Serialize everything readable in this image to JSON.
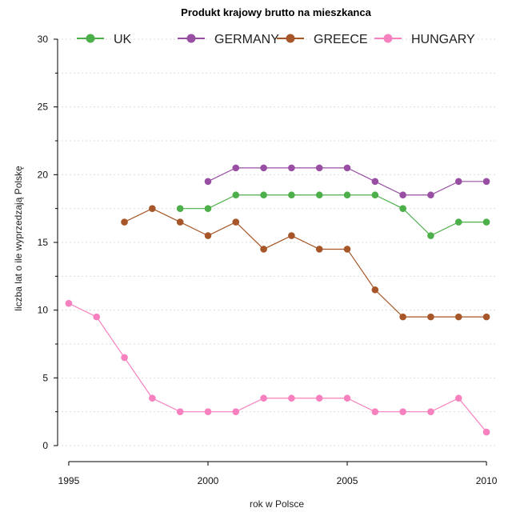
{
  "chart_data": {
    "type": "line",
    "title": "Produkt krajowy brutto na mieszkanca",
    "xlabel": "rok w Polsce",
    "ylabel": "liczba lat o ile wyprzedzają Polskę",
    "xlim": [
      1994.6,
      2010.4
    ],
    "ylim": [
      0,
      30
    ],
    "xticks": [
      1995,
      2000,
      2005,
      2010
    ],
    "yticks": [
      0,
      5,
      10,
      15,
      20,
      25,
      30
    ],
    "grid": true,
    "legend_position": "top",
    "series": [
      {
        "name": "UK",
        "color": "#4daf4a",
        "x": [
          1999,
          2000,
          2001,
          2002,
          2003,
          2004,
          2005,
          2006,
          2007,
          2008,
          2009,
          2010
        ],
        "y": [
          17.5,
          17.5,
          18.5,
          18.5,
          18.5,
          18.5,
          18.5,
          18.5,
          17.5,
          15.5,
          16.5,
          16.5
        ]
      },
      {
        "name": "GERMANY",
        "color": "#984ea3",
        "x": [
          2000,
          2001,
          2002,
          2003,
          2004,
          2005,
          2006,
          2007,
          2008,
          2009,
          2010
        ],
        "y": [
          19.5,
          20.5,
          20.5,
          20.5,
          20.5,
          20.5,
          19.5,
          18.5,
          18.5,
          19.5,
          19.5
        ]
      },
      {
        "name": "GREECE",
        "color": "#a65628",
        "x": [
          1997,
          1998,
          1999,
          2000,
          2001,
          2002,
          2003,
          2004,
          2005,
          2006,
          2007,
          2008,
          2009,
          2010
        ],
        "y": [
          16.5,
          17.5,
          16.5,
          15.5,
          16.5,
          14.5,
          15.5,
          14.5,
          14.5,
          11.5,
          9.5,
          9.5,
          9.5,
          9.5
        ]
      },
      {
        "name": "HUNGARY",
        "color": "#f781bf",
        "x": [
          1995,
          1996,
          1997,
          1998,
          1999,
          2000,
          2001,
          2002,
          2003,
          2004,
          2005,
          2006,
          2007,
          2008,
          2009,
          2010
        ],
        "y": [
          10.5,
          9.5,
          6.5,
          3.5,
          2.5,
          2.5,
          2.5,
          3.5,
          3.5,
          3.5,
          3.5,
          2.5,
          2.5,
          2.5,
          3.5,
          1.0
        ]
      }
    ]
  }
}
